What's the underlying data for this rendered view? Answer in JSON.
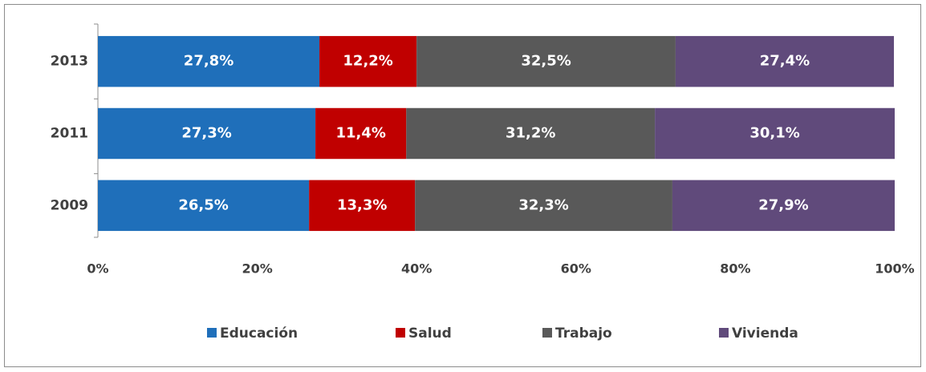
{
  "chart_data": {
    "type": "stacked_bar_horizontal",
    "categories": [
      "2013",
      "2011",
      "2009"
    ],
    "series": [
      {
        "name": "Educación",
        "color": "#1f6fba",
        "values": [
          27.8,
          27.3,
          26.5
        ],
        "value_labels": [
          "27,8%",
          "27,3%",
          "26,5%"
        ]
      },
      {
        "name": "Salud",
        "color": "#c00000",
        "values": [
          12.2,
          11.4,
          13.3
        ],
        "value_labels": [
          "12,2%",
          "11,4%",
          "13,3%"
        ]
      },
      {
        "name": "Trabajo",
        "color": "#595959",
        "values": [
          32.5,
          31.2,
          32.3
        ],
        "value_labels": [
          "32,5%",
          "31,2%",
          "32,3%"
        ]
      },
      {
        "name": "Vivienda",
        "color": "#604a7b",
        "values": [
          27.4,
          30.1,
          27.9
        ],
        "value_labels": [
          "27,4%",
          "30,1%",
          "27,9%"
        ]
      }
    ],
    "xlim": [
      0,
      100
    ],
    "xticks": [
      {
        "value": 0,
        "label": "0%"
      },
      {
        "value": 20,
        "label": "20%"
      },
      {
        "value": 40,
        "label": "40%"
      },
      {
        "value": 60,
        "label": "60%"
      },
      {
        "value": 80,
        "label": "80%"
      },
      {
        "value": 100,
        "label": "100%"
      }
    ],
    "legend": "bottom"
  }
}
